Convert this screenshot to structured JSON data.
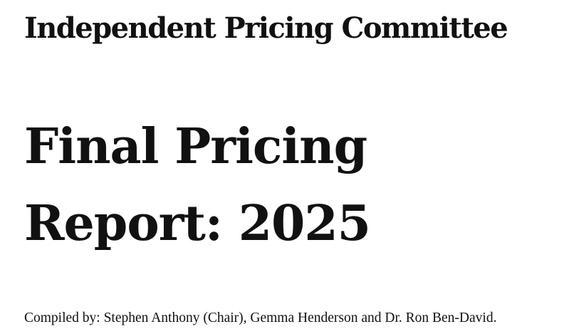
{
  "header": {
    "organization": "Independent Pricing Committee"
  },
  "title": {
    "line1": "Final Pricing",
    "line2": "Report: 2025"
  },
  "credits": {
    "compiled_by": "Compiled by: Stephen Anthony (Chair), Gemma Henderson and Dr. Ron Ben-David."
  }
}
